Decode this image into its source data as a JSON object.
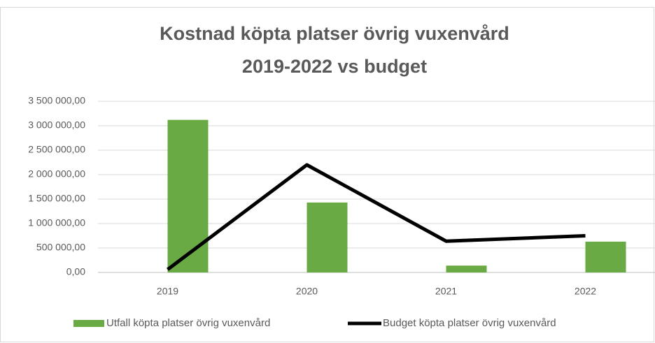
{
  "chart_data": {
    "type": "bar",
    "title": [
      "Kostnad köpta platser övrig vuxenvård",
      "2019-2022 vs budget"
    ],
    "categories": [
      "2019",
      "2020",
      "2021",
      "2022"
    ],
    "series": [
      {
        "name": "Utfall köpta platser övrig vuxenvård",
        "type": "bar",
        "color": "#6aaa45",
        "values": [
          3120000,
          1430000,
          140000,
          630000
        ]
      },
      {
        "name": "Budget köpta platser övrig vuxenvård",
        "type": "line",
        "color": "#000000",
        "values": [
          60000,
          2200000,
          640000,
          750000
        ]
      }
    ],
    "ylim": [
      0,
      3500000
    ],
    "yticks": [
      {
        "value": 0,
        "label": "0,00"
      },
      {
        "value": 500000,
        "label": "500 000,00"
      },
      {
        "value": 1000000,
        "label": "1 000 000,00"
      },
      {
        "value": 1500000,
        "label": "1 500 000,00"
      },
      {
        "value": 2000000,
        "label": "2 000 000,00"
      },
      {
        "value": 2500000,
        "label": "2 500 000,00"
      },
      {
        "value": 3000000,
        "label": "3 000 000,00"
      },
      {
        "value": 3500000,
        "label": "3 500 000,00"
      }
    ],
    "grid": true,
    "legend": "bottom"
  }
}
